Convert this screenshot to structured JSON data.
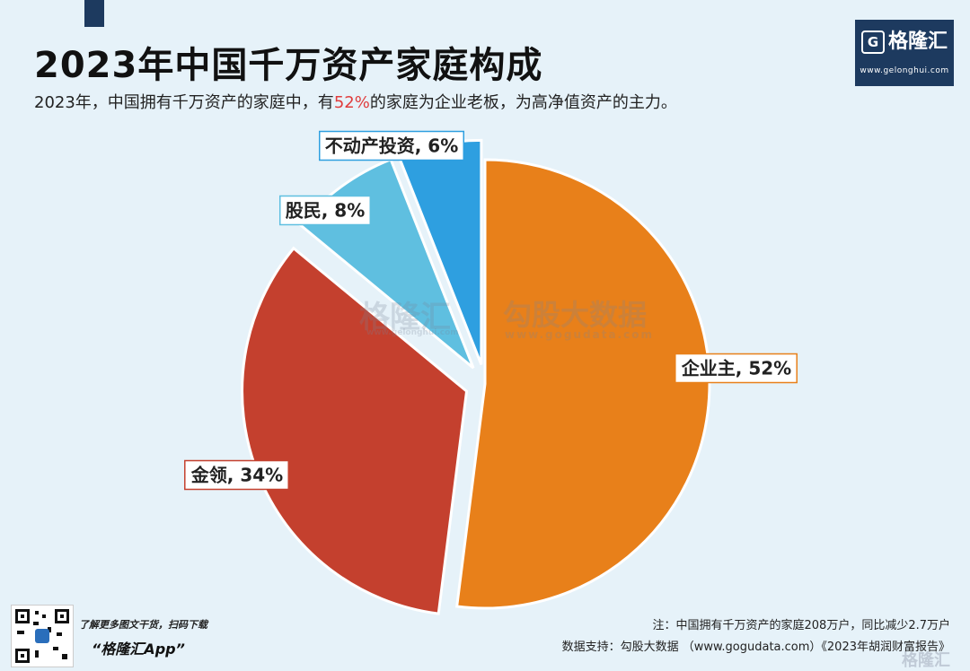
{
  "title": "2023年中国千万资产家庭构成",
  "subtitle": {
    "prefix": "2023年，中国拥有千万资产的家庭中，有",
    "highlight": "52%",
    "suffix": "的家庭为企业老板，为高净值资产的主力。"
  },
  "brand": {
    "logo_mark": "G",
    "name": "格隆汇",
    "url": "www.gelonghui.com"
  },
  "watermarks": {
    "gelonghui": "格隆汇",
    "gogudata": "勾股大数据",
    "gogudata_url": "www.gogudata.com",
    "gelonghui_url": "www.gelonghui.com"
  },
  "chart_data": {
    "type": "pie",
    "categories": [
      "企业主",
      "金领",
      "股民",
      "不动产投资"
    ],
    "values": [
      52,
      34,
      8,
      6
    ],
    "labels": [
      "企业主, 52%",
      "金领, 34%",
      "股民, 8%",
      "不动产投资, 6%"
    ],
    "colors": [
      "#e8801a",
      "#c4402e",
      "#5fbfe0",
      "#2e9fe0"
    ],
    "exploded": [
      "金领",
      "股民",
      "不动产投资"
    ]
  },
  "footer": {
    "qr_caption": "了解更多图文干货，扫码下载",
    "qr_app": "“格隆汇App”",
    "note": "注：中国拥有千万资产的家庭208万户，同比减少2.7万户",
    "source": "数据支持：勾股大数据 （www.gogudata.com）《2023年胡润财富报告》",
    "corner_logo": "格隆汇"
  }
}
